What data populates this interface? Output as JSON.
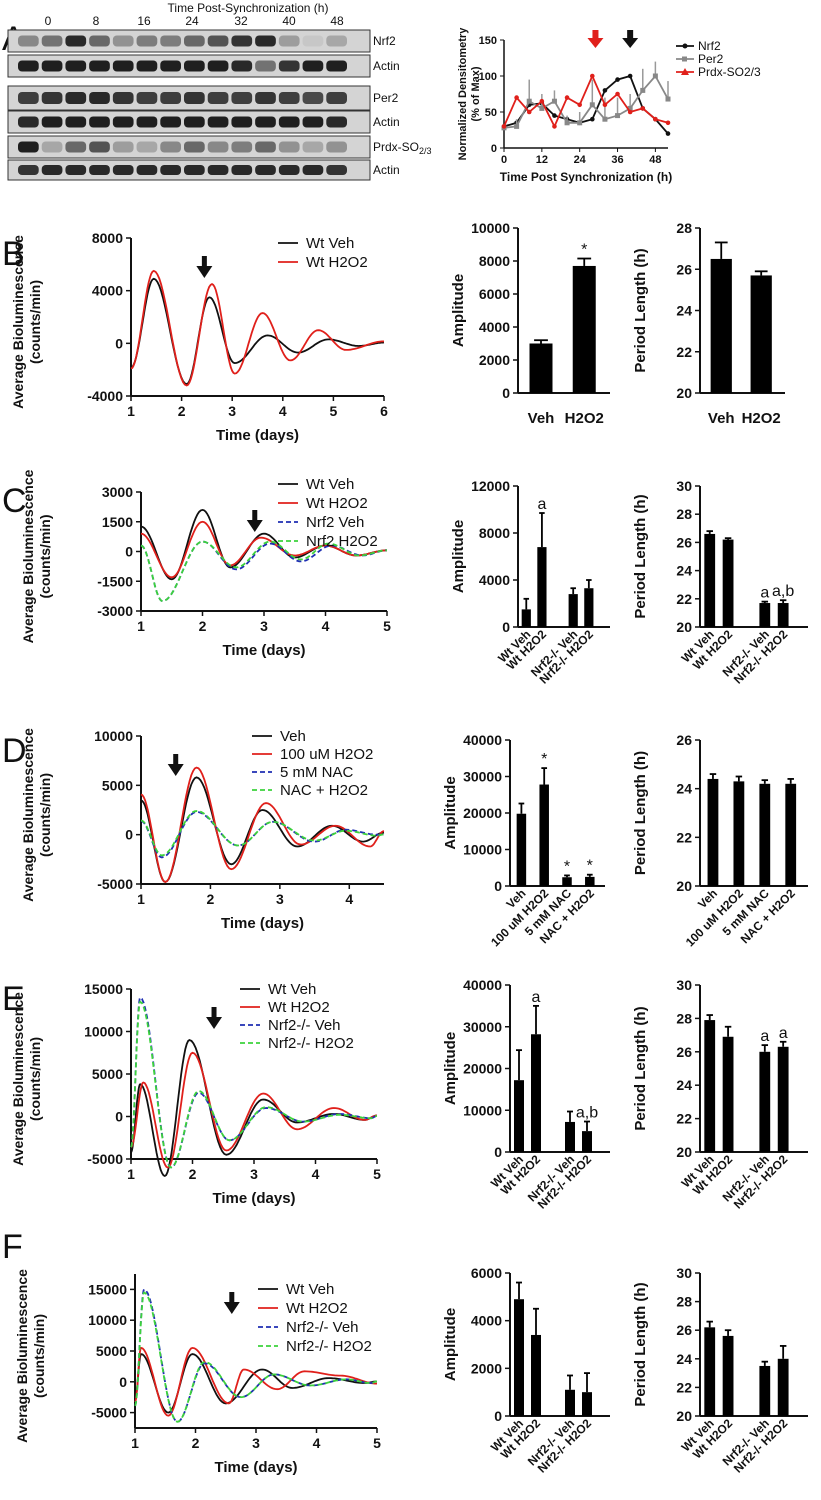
{
  "panel_labels": [
    "A",
    "B",
    "C",
    "D",
    "E",
    "F"
  ],
  "colors": {
    "black": "#111111",
    "red": "#e0201b",
    "blue": "#1f2fb3",
    "green": "#3cd23c",
    "gray": "#888888"
  },
  "blot": {
    "title": "Time Post-Synchronization (h)",
    "time_labels": [
      "0",
      "8",
      "16",
      "24",
      "32",
      "40",
      "48"
    ],
    "rows": [
      "Nrf2",
      "Actin",
      "Per2",
      "Actin",
      "Prdx-SO",
      "Actin"
    ],
    "sub": "2/3"
  },
  "chart_data": [
    {
      "id": "A_densitometry",
      "type": "line",
      "xlabel": "Time Post Synchronization (h)",
      "ylabel": [
        "Normalized Densitometry",
        "(% of Max)"
      ],
      "xlim": [
        0,
        52
      ],
      "ylim": [
        0,
        150
      ],
      "xticks": [
        0,
        12,
        24,
        36,
        48
      ],
      "yticks": [
        0,
        50,
        100,
        150
      ],
      "arrows": [
        {
          "x": 29,
          "color": "red"
        },
        {
          "x": 40,
          "color": "black"
        }
      ],
      "series": [
        {
          "name": "Nrf2",
          "color": "black",
          "marker": "dot",
          "x": [
            0,
            4,
            8,
            12,
            16,
            20,
            24,
            28,
            32,
            36,
            40,
            44,
            48,
            52
          ],
          "y": [
            30,
            35,
            60,
            62,
            45,
            40,
            35,
            40,
            80,
            95,
            100,
            55,
            40,
            20
          ]
        },
        {
          "name": "Per2",
          "color": "gray",
          "marker": "square",
          "x": [
            0,
            4,
            8,
            12,
            16,
            20,
            24,
            28,
            32,
            36,
            40,
            44,
            48,
            52
          ],
          "y": [
            28,
            30,
            65,
            55,
            65,
            35,
            35,
            60,
            40,
            45,
            55,
            80,
            100,
            68
          ],
          "err": [
            5,
            10,
            30,
            20,
            15,
            10,
            15,
            35,
            30,
            25,
            20,
            30,
            20,
            25
          ]
        },
        {
          "name": "Prdx-SO2/3",
          "color": "red",
          "marker": "triangle",
          "x": [
            0,
            4,
            8,
            12,
            16,
            20,
            24,
            28,
            32,
            36,
            40,
            44,
            48,
            52
          ],
          "y": [
            30,
            70,
            50,
            65,
            30,
            70,
            60,
            100,
            60,
            75,
            50,
            55,
            40,
            35
          ]
        }
      ]
    },
    {
      "id": "B_lum",
      "type": "line",
      "xlabel": "Time (days)",
      "ylabel": [
        "Average Bioluminescence",
        "(counts/min)"
      ],
      "xlim": [
        1,
        6
      ],
      "ylim": [
        -4000,
        8000
      ],
      "xticks": [
        1,
        2,
        3,
        4,
        5,
        6
      ],
      "yticks": [
        -4000,
        0,
        4000,
        8000
      ],
      "arrow_x": 2.45,
      "series": [
        {
          "name": "Wt Veh",
          "color": "black",
          "dash": "",
          "amp": [
            4900,
            -3100,
            3500,
            -1500,
            1100,
            -700,
            700
          ],
          "peaks": [
            1.45,
            2.1,
            2.55,
            3.05,
            3.7,
            4.3,
            4.9
          ],
          "shift": 2.42
        },
        {
          "name": "Wt H2O2",
          "color": "red",
          "dash": "",
          "amp": [
            5500,
            -3200,
            4500,
            -2300,
            2300,
            -1200,
            1000
          ],
          "peaks": [
            1.45,
            2.1,
            2.55,
            3.0,
            3.6,
            4.1,
            4.7
          ],
          "shift": 2.42
        }
      ],
      "legend": [
        "Wt Veh",
        "Wt H2O2"
      ]
    },
    {
      "id": "B_amp",
      "type": "bar",
      "ylabel": "Amplitude",
      "categories": [
        "Veh",
        "H2O2"
      ],
      "values": [
        3000,
        7700
      ],
      "err": [
        200,
        450
      ],
      "ylim": [
        0,
        10000
      ],
      "yticks": [
        0,
        2000,
        4000,
        6000,
        8000,
        10000
      ],
      "marks": [
        "",
        "*"
      ]
    },
    {
      "id": "B_period",
      "type": "bar",
      "ylabel": "Period Length (h)",
      "categories": [
        "Veh",
        "H2O2"
      ],
      "values": [
        26.5,
        25.7
      ],
      "err": [
        0.8,
        0.2
      ],
      "ylim": [
        20,
        28
      ],
      "yticks": [
        20,
        22,
        24,
        26,
        28
      ],
      "marks": [
        "",
        ""
      ]
    },
    {
      "id": "C_lum",
      "type": "line",
      "xlabel": "Time (days)",
      "ylabel": [
        "Average  Bioluminescence",
        "(counts/min)"
      ],
      "xlim": [
        1,
        5
      ],
      "ylim": [
        -3000,
        3000
      ],
      "xticks": [
        1,
        2,
        3,
        4,
        5
      ],
      "yticks": [
        -3000,
        -1500,
        0,
        1500,
        3000
      ],
      "arrow_x": 2.85,
      "legend": [
        "Wt Veh",
        "Wt H2O2",
        "Nrf2 Veh",
        "Nrf2 H2O2"
      ]
    },
    {
      "id": "C_amp",
      "type": "bar",
      "ylabel": "Amplitude",
      "categories": [
        "Wt Veh",
        "Wt H2O2",
        "Nrf2-/- Veh",
        "Nrf2-/- H2O2"
      ],
      "values": [
        1500,
        6800,
        2800,
        3300
      ],
      "err": [
        900,
        2900,
        500,
        700
      ],
      "ylim": [
        0,
        12000
      ],
      "yticks": [
        0,
        4000,
        8000,
        12000
      ],
      "marks": [
        "",
        "a",
        "",
        ""
      ]
    },
    {
      "id": "C_period",
      "type": "bar",
      "ylabel": "Period Length (h)",
      "categories": [
        "Wt Veh",
        "Wt H2O2",
        "Nrf2-/- Veh",
        "Nrf2-/- H2O2"
      ],
      "values": [
        26.6,
        26.2,
        21.7,
        21.7
      ],
      "err": [
        0.2,
        0.1,
        0.1,
        0.2
      ],
      "ylim": [
        20,
        30
      ],
      "yticks": [
        20,
        22,
        24,
        26,
        28,
        30
      ],
      "marks": [
        "",
        "",
        "a",
        "a,b"
      ]
    },
    {
      "id": "D_lum",
      "type": "line",
      "xlabel": "Time (days)",
      "ylabel": [
        "Average  Bioluminescence",
        "(counts/min)"
      ],
      "xlim": [
        1,
        4.5
      ],
      "ylim": [
        -5000,
        10000
      ],
      "xticks": [
        1,
        2,
        3,
        4
      ],
      "yticks": [
        -5000,
        0,
        5000,
        10000
      ],
      "arrow_x": 1.5,
      "legend": [
        "Veh",
        "100 uM H2O2",
        "5 mM NAC",
        "NAC + H2O2"
      ]
    },
    {
      "id": "D_amp",
      "type": "bar",
      "ylabel": "Amplitude",
      "categories": [
        "Veh",
        "100 uM H2O2",
        "5 mM NAC",
        "NAC + H2O2"
      ],
      "values": [
        19800,
        27800,
        2400,
        2500
      ],
      "err": [
        2800,
        4500,
        500,
        600
      ],
      "ylim": [
        0,
        40000
      ],
      "yticks": [
        0,
        10000,
        20000,
        30000,
        40000
      ],
      "marks": [
        "",
        "*",
        "*",
        "*"
      ]
    },
    {
      "id": "D_period",
      "type": "bar",
      "ylabel": "Period Length (h)",
      "categories": [
        "Veh",
        "100 uM H2O2",
        "5 mM NAC",
        "NAC + H2O2"
      ],
      "values": [
        24.4,
        24.3,
        24.2,
        24.2
      ],
      "err": [
        0.2,
        0.2,
        0.15,
        0.2
      ],
      "ylim": [
        20,
        26
      ],
      "yticks": [
        20,
        22,
        24,
        26
      ],
      "marks": [
        "",
        "",
        "",
        ""
      ]
    },
    {
      "id": "E_lum",
      "type": "line",
      "xlabel": "Time (days)",
      "ylabel": [
        "Average Bioluminescence",
        "(counts/min)"
      ],
      "xlim": [
        1,
        5
      ],
      "ylim": [
        -5000,
        15000
      ],
      "xticks": [
        1,
        2,
        3,
        4,
        5
      ],
      "yticks": [
        -5000,
        0,
        5000,
        10000,
        15000
      ],
      "arrow_x": 2.35,
      "legend": [
        "Wt Veh",
        "Wt H2O2",
        "Nrf2-/- Veh",
        "Nrf2-/- H2O2"
      ]
    },
    {
      "id": "E_amp",
      "type": "bar",
      "ylabel": "Amplitude",
      "categories": [
        "Wt Veh",
        "Wt H2O2",
        "Nrf2-/- Veh",
        "Nrf2-/- H2O2"
      ],
      "values": [
        17200,
        28200,
        7200,
        5000
      ],
      "err": [
        7200,
        6800,
        2500,
        2300
      ],
      "ylim": [
        0,
        40000
      ],
      "yticks": [
        0,
        10000,
        20000,
        30000,
        40000
      ],
      "marks": [
        "",
        "a",
        "",
        "a,b"
      ]
    },
    {
      "id": "E_period",
      "type": "bar",
      "ylabel": "Period Length (h)",
      "categories": [
        "Wt Veh",
        "Wt H2O2",
        "Nrf2-/- Veh",
        "Nrf2-/- H2O2"
      ],
      "values": [
        27.9,
        26.9,
        26.0,
        26.3
      ],
      "err": [
        0.3,
        0.6,
        0.4,
        0.3
      ],
      "ylim": [
        20,
        30
      ],
      "yticks": [
        20,
        22,
        24,
        26,
        28,
        30
      ],
      "marks": [
        "",
        "",
        "a",
        "a"
      ]
    },
    {
      "id": "F_lum",
      "type": "line",
      "xlabel": "Time (days)",
      "ylabel": [
        "Average Bioluminescence",
        "(counts/min)"
      ],
      "xlim": [
        1,
        5
      ],
      "ylim": [
        -7500,
        17500
      ],
      "xticks": [
        1,
        2,
        3,
        4,
        5
      ],
      "yticks": [
        -5000,
        0,
        5000,
        10000,
        15000
      ],
      "arrow_x": 2.6,
      "legend": [
        "Wt Veh",
        "Wt H2O2",
        "Nrf2-/- Veh",
        "Nrf2-/- H2O2"
      ]
    },
    {
      "id": "F_amp",
      "type": "bar",
      "ylabel": "Amplitude",
      "categories": [
        "Wt Veh",
        "Wt H2O2",
        "Nrf2-/- Veh",
        "Nrf2-/- H2O2"
      ],
      "values": [
        4900,
        3400,
        1100,
        1000
      ],
      "err": [
        700,
        1100,
        600,
        800
      ],
      "ylim": [
        0,
        6000
      ],
      "yticks": [
        0,
        2000,
        4000,
        6000
      ],
      "marks": [
        "",
        "",
        "",
        ""
      ]
    },
    {
      "id": "F_period",
      "type": "bar",
      "ylabel": "Period Length (h)",
      "categories": [
        "Wt Veh",
        "Wt H2O2",
        "Nrf2-/- Veh",
        "Nrf2-/- H2O2"
      ],
      "values": [
        26.2,
        25.6,
        23.5,
        24.0
      ],
      "err": [
        0.4,
        0.4,
        0.3,
        0.9
      ],
      "ylim": [
        20,
        30
      ],
      "yticks": [
        20,
        22,
        24,
        26,
        28,
        30
      ],
      "marks": [
        "",
        "",
        "",
        ""
      ]
    }
  ]
}
